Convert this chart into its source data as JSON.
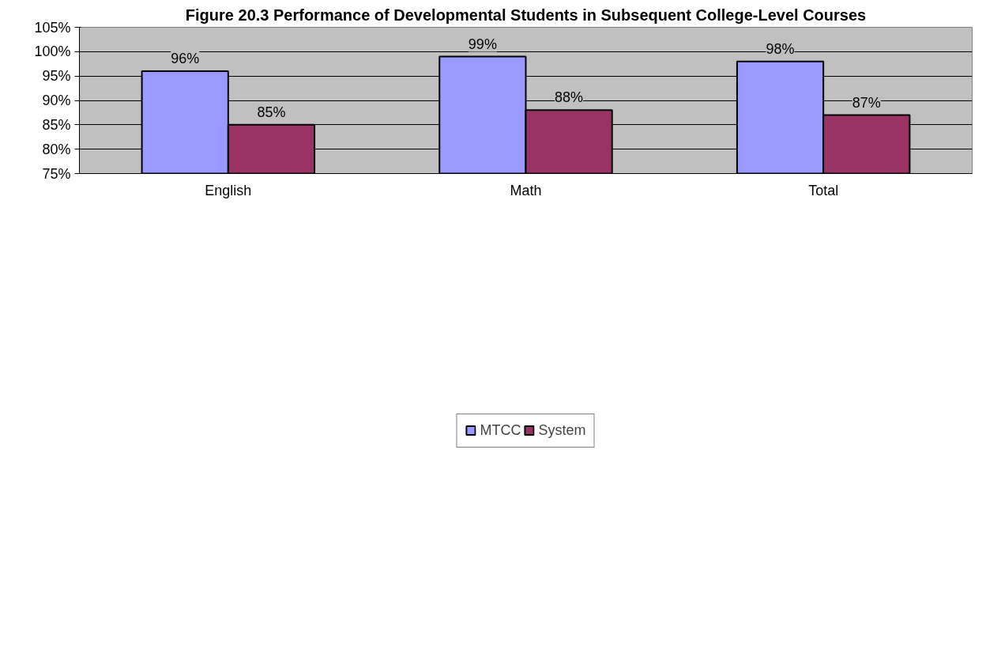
{
  "chart_data": {
    "type": "bar",
    "title": "Figure 20.3 Performance of Developmental Students in Subsequent College-Level Courses",
    "categories": [
      "English",
      "Math",
      "Total"
    ],
    "series": [
      {
        "name": "MTCC",
        "color": "#9999ff",
        "values": [
          96,
          99,
          98
        ],
        "value_labels": [
          "96%",
          "99%",
          "98%"
        ]
      },
      {
        "name": "System",
        "color": "#993366",
        "values": [
          85,
          88,
          87
        ],
        "value_labels": [
          "85%",
          "88%",
          "87%"
        ]
      }
    ],
    "ylim": [
      75,
      105
    ],
    "yticks": [
      {
        "value": 75,
        "label": "75%"
      },
      {
        "value": 80,
        "label": "80%"
      },
      {
        "value": 85,
        "label": "85%"
      },
      {
        "value": 90,
        "label": "90%"
      },
      {
        "value": 95,
        "label": "95%"
      },
      {
        "value": 100,
        "label": "100%"
      },
      {
        "value": 105,
        "label": "105%"
      }
    ],
    "grid": "y",
    "legend": "bottom"
  }
}
